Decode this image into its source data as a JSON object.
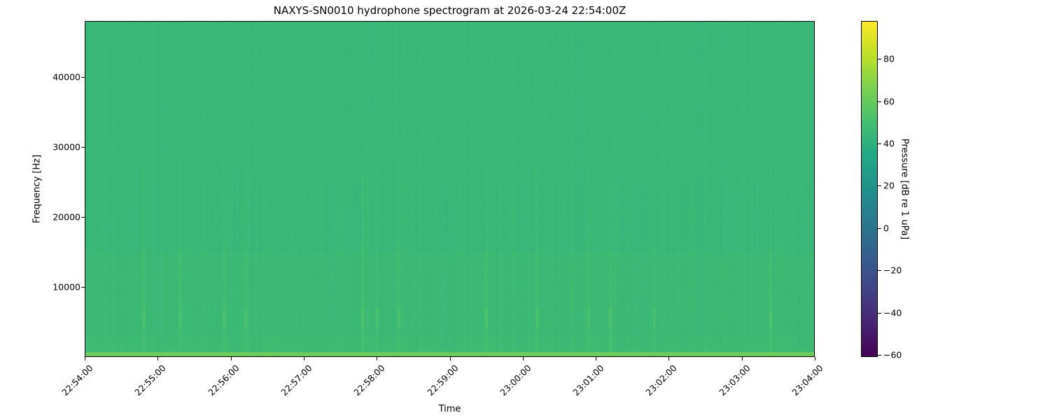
{
  "chart_data": {
    "type": "heatmap",
    "title": "NAXYS-SN0010 hydrophone spectrogram at 2026-03-24 22:54:00Z",
    "xlabel": "Time",
    "ylabel": "Frequency [Hz]",
    "xlim": [
      "22:54:00",
      "23:04:00"
    ],
    "ylim": [
      0,
      48000
    ],
    "x_ticks": [
      "22:54:00",
      "22:55:00",
      "22:56:00",
      "22:57:00",
      "22:58:00",
      "22:59:00",
      "23:00:00",
      "23:01:00",
      "23:02:00",
      "23:03:00",
      "23:04:00"
    ],
    "y_ticks": [
      10000,
      20000,
      30000,
      40000
    ],
    "colorbar": {
      "label": "Pressure [dB re 1 uPa]",
      "colormap": "viridis",
      "range": [
        -61,
        98
      ],
      "ticks": [
        -60,
        -40,
        -20,
        0,
        20,
        40,
        60,
        80
      ]
    },
    "typical_level_db": 45,
    "low_frequency_band_level_db": 62,
    "transient_events_minutes_after_start": [
      0.8,
      1.3,
      1.9,
      2.2,
      3.8,
      4.0,
      4.3,
      5.5,
      6.2,
      6.9,
      7.2,
      7.8,
      9.4
    ]
  }
}
